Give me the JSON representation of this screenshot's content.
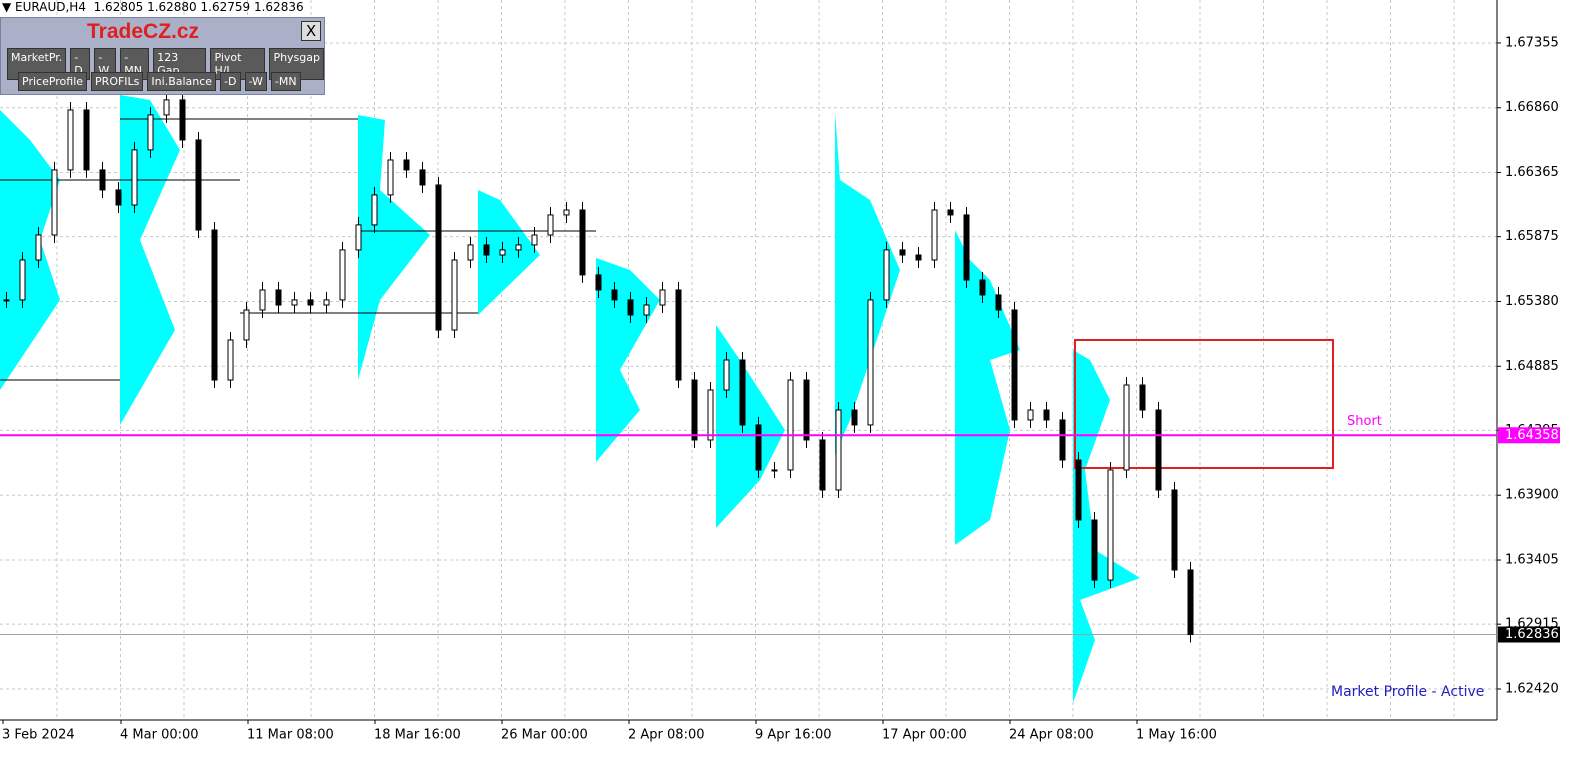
{
  "header": {
    "symbol": "EURAUD,H4",
    "open": "1.62805",
    "high": "1.62880",
    "low": "1.62759",
    "close": "1.62836"
  },
  "panel": {
    "title": "TradeCZ.cz",
    "close": "X",
    "buttons_row1": [
      "MarketPr.",
      "-D",
      "-W",
      "-MN",
      "123 Gap",
      "Pivot H/L",
      "Physgap"
    ],
    "buttons_row2": [
      "PriceProfile",
      "PROFILs",
      "Ini.Balance",
      "-D",
      "-W",
      "-MN"
    ]
  },
  "chart_data": {
    "type": "candlestick",
    "ylim": [
      1.62183,
      1.67683
    ],
    "yticks": [
      {
        "value": 1.67355,
        "label": "1.67355"
      },
      {
        "value": 1.6686,
        "label": "1.66860"
      },
      {
        "value": 1.66365,
        "label": "1.66365"
      },
      {
        "value": 1.65875,
        "label": "1.65875"
      },
      {
        "value": 1.6538,
        "label": "1.65380"
      },
      {
        "value": 1.64885,
        "label": "1.64885"
      },
      {
        "value": 1.64395,
        "label": "1.64395"
      },
      {
        "value": 1.639,
        "label": "1.63900"
      },
      {
        "value": 1.63405,
        "label": "1.63405"
      },
      {
        "value": 1.62915,
        "label": "1.62915"
      },
      {
        "value": 1.6242,
        "label": "1.62420"
      }
    ],
    "grid": true,
    "x_labels": [
      "3 Feb 2024",
      "4 Mar 00:00",
      "11 Mar 08:00",
      "18 Mar 16:00",
      "26 Mar 00:00",
      "2 Apr 08:00",
      "9 Apr 16:00",
      "17 Apr 00:00",
      "24 Apr 08:00",
      "1 May 16:00"
    ],
    "close": [
      1.65392,
      1.65697,
      1.65888,
      1.66385,
      1.66843,
      1.66385,
      1.66232,
      1.66117,
      1.66538,
      1.66805,
      1.6692,
      1.66614,
      1.65926,
      1.6478,
      1.65086,
      1.65315,
      1.65468,
      1.65353,
      1.65392,
      1.65353,
      1.65392,
      1.65774,
      1.65965,
      1.66194,
      1.66461,
      1.66385,
      1.6627,
      1.65162,
      1.65697,
      1.65812,
      1.65735,
      1.65774,
      1.65812,
      1.65888,
      1.66041,
      1.66079,
      1.65583,
      1.65468,
      1.65392,
      1.65277,
      1.65353,
      1.65468,
      1.6478,
      1.64322,
      1.64704,
      1.64933,
      1.64437,
      1.64093,
      1.64093,
      1.6478,
      1.64322,
      1.6394,
      1.64551,
      1.64437,
      1.65392,
      1.65774,
      1.65735,
      1.65697,
      1.66079,
      1.66041,
      1.65544,
      1.6543,
      1.65315,
      1.64475,
      1.64551,
      1.64475,
      1.64169,
      1.63711,
      1.63252,
      1.64093,
      1.64742,
      1.64551,
      1.6394,
      1.63329,
      1.62836
    ],
    "short_line": {
      "name": "Short",
      "value": 1.64358,
      "label": "1.64358",
      "color": "#ff00ff"
    },
    "current_price": {
      "value": 1.62836,
      "label": "1.62836"
    }
  },
  "status": "Market Profile - Active"
}
